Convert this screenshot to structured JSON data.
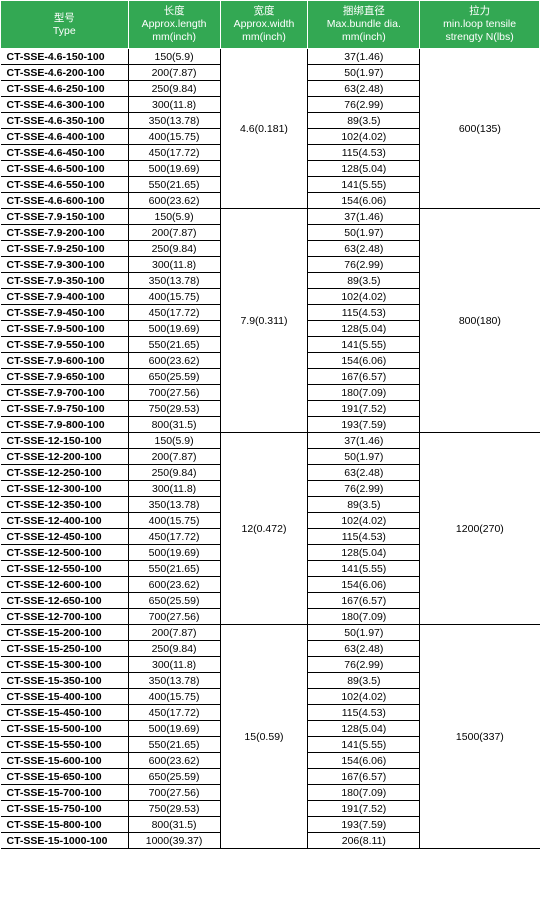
{
  "headers": {
    "type": {
      "cn": "型号",
      "en": "Type"
    },
    "length": {
      "cn": "长度",
      "en": "Approx.length",
      "unit": "mm(inch)"
    },
    "width": {
      "cn": "宽度",
      "en": "Approx.width",
      "unit": "mm(inch)"
    },
    "bundle": {
      "cn": "捆绑直径",
      "en": "Max.bundle dia.",
      "unit": "mm(inch)"
    },
    "tensile": {
      "cn": "拉力",
      "en": "min.loop tensile",
      "unit": "strengty N(lbs)"
    }
  },
  "colors": {
    "header_bg": "#33a853",
    "header_fg": "#ffffff",
    "body_fg": "#000000",
    "grid": "#000000"
  },
  "groups": [
    {
      "width": "4.6(0.181)",
      "tensile": "600(135)",
      "rows": [
        {
          "type": "CT-SSE-4.6-150-100",
          "length": "150(5.9)",
          "bundle": "37(1.46)"
        },
        {
          "type": "CT-SSE-4.6-200-100",
          "length": "200(7.87)",
          "bundle": "50(1.97)"
        },
        {
          "type": "CT-SSE-4.6-250-100",
          "length": "250(9.84)",
          "bundle": "63(2.48)"
        },
        {
          "type": "CT-SSE-4.6-300-100",
          "length": "300(11.8)",
          "bundle": "76(2.99)"
        },
        {
          "type": "CT-SSE-4.6-350-100",
          "length": "350(13.78)",
          "bundle": "89(3.5)"
        },
        {
          "type": "CT-SSE-4.6-400-100",
          "length": "400(15.75)",
          "bundle": "102(4.02)"
        },
        {
          "type": "CT-SSE-4.6-450-100",
          "length": "450(17.72)",
          "bundle": "115(4.53)"
        },
        {
          "type": "CT-SSE-4.6-500-100",
          "length": "500(19.69)",
          "bundle": "128(5.04)"
        },
        {
          "type": "CT-SSE-4.6-550-100",
          "length": "550(21.65)",
          "bundle": "141(5.55)"
        },
        {
          "type": "CT-SSE-4.6-600-100",
          "length": "600(23.62)",
          "bundle": "154(6.06)"
        }
      ]
    },
    {
      "width": "7.9(0.311)",
      "tensile": "800(180)",
      "rows": [
        {
          "type": "CT-SSE-7.9-150-100",
          "length": "150(5.9)",
          "bundle": "37(1.46)"
        },
        {
          "type": "CT-SSE-7.9-200-100",
          "length": "200(7.87)",
          "bundle": "50(1.97)"
        },
        {
          "type": "CT-SSE-7.9-250-100",
          "length": "250(9.84)",
          "bundle": "63(2.48)"
        },
        {
          "type": "CT-SSE-7.9-300-100",
          "length": "300(11.8)",
          "bundle": "76(2.99)"
        },
        {
          "type": "CT-SSE-7.9-350-100",
          "length": "350(13.78)",
          "bundle": "89(3.5)"
        },
        {
          "type": "CT-SSE-7.9-400-100",
          "length": "400(15.75)",
          "bundle": "102(4.02)"
        },
        {
          "type": "CT-SSE-7.9-450-100",
          "length": "450(17.72)",
          "bundle": "115(4.53)"
        },
        {
          "type": "CT-SSE-7.9-500-100",
          "length": "500(19.69)",
          "bundle": "128(5.04)"
        },
        {
          "type": "CT-SSE-7.9-550-100",
          "length": "550(21.65)",
          "bundle": "141(5.55)"
        },
        {
          "type": "CT-SSE-7.9-600-100",
          "length": "600(23.62)",
          "bundle": "154(6.06)"
        },
        {
          "type": "CT-SSE-7.9-650-100",
          "length": "650(25.59)",
          "bundle": "167(6.57)"
        },
        {
          "type": "CT-SSE-7.9-700-100",
          "length": "700(27.56)",
          "bundle": "180(7.09)"
        },
        {
          "type": "CT-SSE-7.9-750-100",
          "length": "750(29.53)",
          "bundle": "191(7.52)"
        },
        {
          "type": "CT-SSE-7.9-800-100",
          "length": "800(31.5)",
          "bundle": "193(7.59)"
        }
      ]
    },
    {
      "width": "12(0.472)",
      "tensile": "1200(270)",
      "rows": [
        {
          "type": "CT-SSE-12-150-100",
          "length": "150(5.9)",
          "bundle": "37(1.46)"
        },
        {
          "type": "CT-SSE-12-200-100",
          "length": "200(7.87)",
          "bundle": "50(1.97)"
        },
        {
          "type": "CT-SSE-12-250-100",
          "length": "250(9.84)",
          "bundle": "63(2.48)"
        },
        {
          "type": "CT-SSE-12-300-100",
          "length": "300(11.8)",
          "bundle": "76(2.99)"
        },
        {
          "type": "CT-SSE-12-350-100",
          "length": "350(13.78)",
          "bundle": "89(3.5)"
        },
        {
          "type": "CT-SSE-12-400-100",
          "length": "400(15.75)",
          "bundle": "102(4.02)"
        },
        {
          "type": "CT-SSE-12-450-100",
          "length": "450(17.72)",
          "bundle": "115(4.53)"
        },
        {
          "type": "CT-SSE-12-500-100",
          "length": "500(19.69)",
          "bundle": "128(5.04)"
        },
        {
          "type": "CT-SSE-12-550-100",
          "length": "550(21.65)",
          "bundle": "141(5.55)"
        },
        {
          "type": "CT-SSE-12-600-100",
          "length": "600(23.62)",
          "bundle": "154(6.06)"
        },
        {
          "type": "CT-SSE-12-650-100",
          "length": "650(25.59)",
          "bundle": "167(6.57)"
        },
        {
          "type": "CT-SSE-12-700-100",
          "length": "700(27.56)",
          "bundle": "180(7.09)"
        }
      ]
    },
    {
      "width": "15(0.59)",
      "tensile": "1500(337)",
      "rows": [
        {
          "type": "CT-SSE-15-200-100",
          "length": "200(7.87)",
          "bundle": "50(1.97)"
        },
        {
          "type": "CT-SSE-15-250-100",
          "length": "250(9.84)",
          "bundle": "63(2.48)"
        },
        {
          "type": "CT-SSE-15-300-100",
          "length": "300(11.8)",
          "bundle": "76(2.99)"
        },
        {
          "type": "CT-SSE-15-350-100",
          "length": "350(13.78)",
          "bundle": "89(3.5)"
        },
        {
          "type": "CT-SSE-15-400-100",
          "length": "400(15.75)",
          "bundle": "102(4.02)"
        },
        {
          "type": "CT-SSE-15-450-100",
          "length": "450(17.72)",
          "bundle": "115(4.53)"
        },
        {
          "type": "CT-SSE-15-500-100",
          "length": "500(19.69)",
          "bundle": "128(5.04)"
        },
        {
          "type": "CT-SSE-15-550-100",
          "length": "550(21.65)",
          "bundle": "141(5.55)"
        },
        {
          "type": "CT-SSE-15-600-100",
          "length": "600(23.62)",
          "bundle": "154(6.06)"
        },
        {
          "type": "CT-SSE-15-650-100",
          "length": "650(25.59)",
          "bundle": "167(6.57)"
        },
        {
          "type": "CT-SSE-15-700-100",
          "length": "700(27.56)",
          "bundle": "180(7.09)"
        },
        {
          "type": "CT-SSE-15-750-100",
          "length": "750(29.53)",
          "bundle": "191(7.52)"
        },
        {
          "type": "CT-SSE-15-800-100",
          "length": "800(31.5)",
          "bundle": "193(7.59)"
        },
        {
          "type": "CT-SSE-15-1000-100",
          "length": "1000(39.37)",
          "bundle": "206(8.11)"
        }
      ]
    }
  ]
}
